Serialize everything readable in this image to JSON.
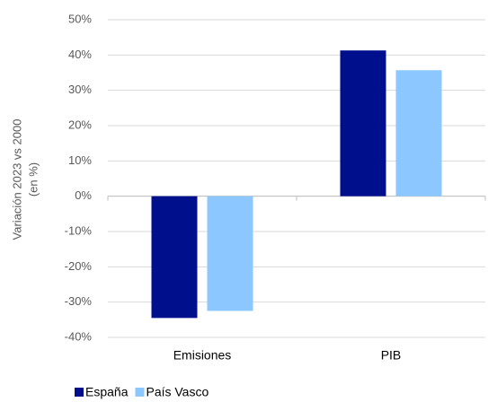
{
  "chart_data": {
    "type": "bar",
    "y_label": [
      "Variación 2023 vs 2000",
      "(en %)"
    ],
    "categories": [
      "Emisiones",
      "PIB"
    ],
    "series": [
      {
        "name": "España",
        "color": "#000f8c",
        "values": [
          -34.5,
          41.3
        ]
      },
      {
        "name": "País Vasco",
        "color": "#8cc8ff",
        "values": [
          -32.5,
          35.7
        ]
      }
    ],
    "ylim": [
      -40,
      50
    ],
    "yticks": [
      {
        "value": -40,
        "label": "-40%"
      },
      {
        "value": -30,
        "label": "-30%"
      },
      {
        "value": -20,
        "label": "-20%"
      },
      {
        "value": -10,
        "label": "-10%"
      },
      {
        "value": 0,
        "label": "0%"
      },
      {
        "value": 10,
        "label": "10%"
      },
      {
        "value": 20,
        "label": "20%"
      },
      {
        "value": 30,
        "label": "30%"
      },
      {
        "value": 40,
        "label": "40%"
      },
      {
        "value": 50,
        "label": "50%"
      }
    ],
    "grid": true,
    "legend": "bottom-left"
  }
}
